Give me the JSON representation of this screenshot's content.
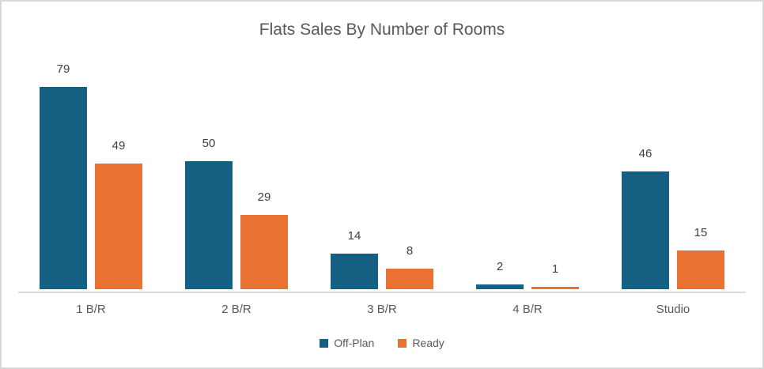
{
  "colors": {
    "off_plan": "#156082",
    "ready": "#E97132",
    "axis_line": "#D9D9D9",
    "frame_border": "#D9D9D9",
    "title_text": "#595959",
    "value_label_text": "#404040",
    "axis_text": "#595959",
    "background": "#FFFFFF"
  },
  "chart_data": {
    "type": "bar",
    "title": "Flats Sales By Number of Rooms",
    "categories": [
      "1 B/R",
      "2 B/R",
      "3 B/R",
      "4 B/R",
      "Studio"
    ],
    "series": [
      {
        "name": "Off-Plan",
        "color": "#156082",
        "values": [
          79,
          50,
          14,
          2,
          46
        ]
      },
      {
        "name": "Ready",
        "color": "#E97132",
        "values": [
          49,
          29,
          8,
          1,
          15
        ]
      }
    ],
    "xlabel": "",
    "ylabel": "",
    "ylim": [
      0,
      79
    ],
    "grid": false,
    "y_axis_visible": false,
    "data_labels": true,
    "legend_position": "bottom"
  }
}
